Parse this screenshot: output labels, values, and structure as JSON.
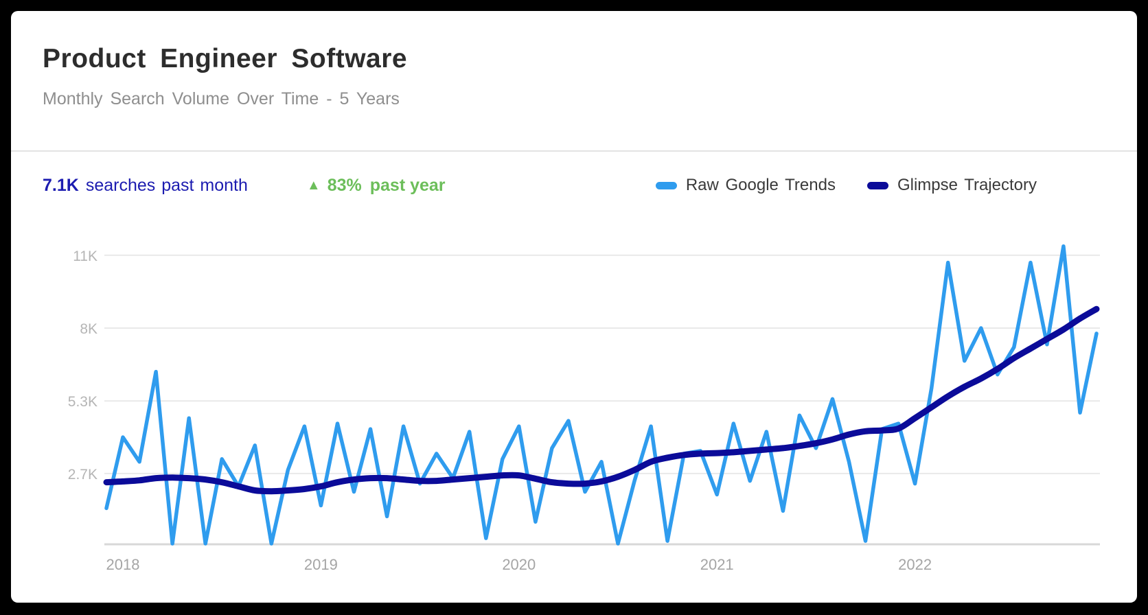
{
  "header": {
    "title": "Product Engineer Software",
    "subtitle": "Monthly Search Volume Over Time - 5 Years"
  },
  "stats": {
    "searches_value": "7.1K",
    "searches_label": "searches past month",
    "trend_icon": "▲",
    "trend_value": "83%",
    "trend_label": "past year"
  },
  "legend": {
    "items": [
      {
        "label": "Raw Google Trends",
        "color": "#2f9cee"
      },
      {
        "label": "Glimpse Trajectory",
        "color": "#0b0b99"
      }
    ]
  },
  "colors": {
    "page_background": "#000000",
    "card_background": "#ffffff",
    "title_text": "#2d2d2d",
    "subtitle_text": "#8e8e8e",
    "stat_navy": "#1c1cb0",
    "stat_green": "#6cbe5a",
    "raw_line": "#2f9cee",
    "trajectory_line": "#0b0b99",
    "gridline": "#e9e9e9",
    "axis_line": "#d8d8d8"
  },
  "chart_data": {
    "type": "line",
    "title": "Product Engineer Software",
    "subtitle": "Monthly Search Volume Over Time - 5 Years",
    "unit": "thousands of searches per month",
    "x_unit": "month",
    "x_start": "2017-12",
    "x_end": "2022-12",
    "grid": true,
    "legend_position": "top-right",
    "ylim": [
      0,
      11.8
    ],
    "y_ticks": [
      {
        "label": "11K",
        "value": 10.67
      },
      {
        "label": "8K",
        "value": 8.0
      },
      {
        "label": "5.3K",
        "value": 5.33
      },
      {
        "label": "2.7K",
        "value": 2.67
      }
    ],
    "x_ticks": [
      {
        "label": "2018",
        "index": 1
      },
      {
        "label": "2019",
        "index": 13
      },
      {
        "label": "2020",
        "index": 25
      },
      {
        "label": "2021",
        "index": 37
      },
      {
        "label": "2022",
        "index": 49
      }
    ],
    "series": [
      {
        "name": "Raw Google Trends",
        "color": "#2f9cee",
        "stroke_width": 5.5,
        "smooth": false,
        "values": [
          1.4,
          4.0,
          3.1,
          6.4,
          0.1,
          4.7,
          0.1,
          3.2,
          2.2,
          3.7,
          0.1,
          2.8,
          4.4,
          1.5,
          4.5,
          2.0,
          4.3,
          1.1,
          4.4,
          2.3,
          3.4,
          2.5,
          4.2,
          0.3,
          3.2,
          4.4,
          0.9,
          3.6,
          4.6,
          2.0,
          3.1,
          0.1,
          2.4,
          4.4,
          0.2,
          3.4,
          3.5,
          1.9,
          4.5,
          2.4,
          4.2,
          1.3,
          4.8,
          3.6,
          5.4,
          3.1,
          0.2,
          4.3,
          4.5,
          2.3,
          5.8,
          10.4,
          6.8,
          8.0,
          6.3,
          7.3,
          10.4,
          7.4,
          11.0,
          4.9,
          7.8
        ]
      },
      {
        "name": "Glimpse Trajectory",
        "color": "#0b0b99",
        "stroke_width": 9,
        "smooth": true,
        "values": [
          2.35,
          2.38,
          2.42,
          2.5,
          2.52,
          2.5,
          2.45,
          2.35,
          2.2,
          2.05,
          2.02,
          2.05,
          2.1,
          2.2,
          2.35,
          2.45,
          2.5,
          2.5,
          2.45,
          2.4,
          2.4,
          2.45,
          2.5,
          2.55,
          2.6,
          2.6,
          2.48,
          2.35,
          2.3,
          2.3,
          2.38,
          2.55,
          2.8,
          3.1,
          3.25,
          3.35,
          3.4,
          3.42,
          3.45,
          3.5,
          3.55,
          3.6,
          3.68,
          3.78,
          3.92,
          4.1,
          4.22,
          4.25,
          4.32,
          4.7,
          5.1,
          5.5,
          5.85,
          6.15,
          6.5,
          6.9,
          7.25,
          7.6,
          7.95,
          8.35,
          8.7
        ]
      }
    ]
  }
}
